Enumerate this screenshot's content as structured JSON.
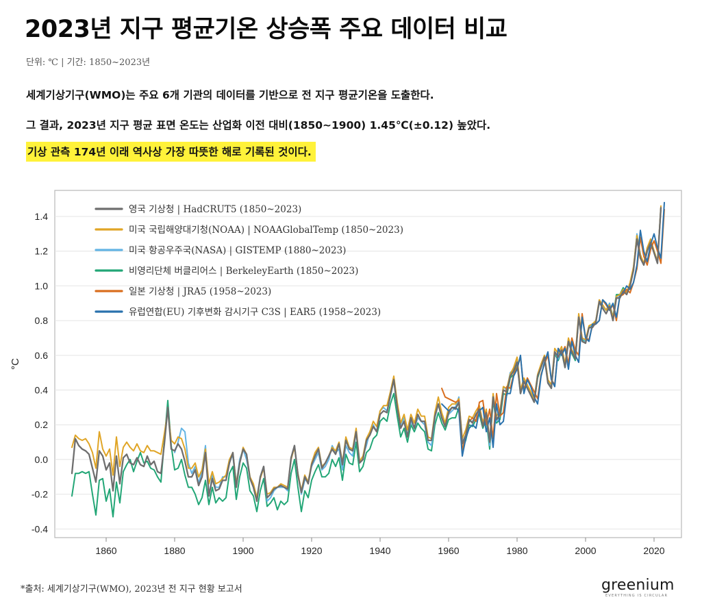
{
  "header": {
    "title": "2023년 지구 평균기온 상승폭 주요 데이터 비교",
    "unit_line": "단위: ℃ | 기간: 1850~2023년"
  },
  "description": {
    "line1": "세계기상기구(WMO)는 주요 6개 기관의 데이터를 기반으로 전 지구 평균기온을 도출한다.",
    "line2": "그 결과, 2023년 지구 평균 표면 온도는 산업화 이전 대비(1850~1900) 1.45℃(±0.12) 높았다.",
    "line3_highlight": "기상 관측 174년 이래 역사상 가장 따뜻한 해로 기록된 것이다."
  },
  "footer": {
    "source": "*출처: 세계기상기구(WMO), 2023년 전 지구 현황 보고서",
    "logo": "greenium",
    "logo_tagline": "EVERYTHING IS CIRCULAR"
  },
  "colors": {
    "highlight": "#fff23a",
    "HadCRUT5": "#6e6e6e",
    "NOAA": "#e0a526",
    "NASA": "#63b4e4",
    "Berkeley": "#22a676",
    "JRA5": "#d96e1e",
    "ERA5": "#2a72ad"
  },
  "chart_data": {
    "type": "line",
    "ylabel": "°C",
    "xlabel": "",
    "xlim": [
      1845,
      2028
    ],
    "ylim": [
      -0.45,
      1.55
    ],
    "xticks": [
      1860,
      1880,
      1900,
      1920,
      1940,
      1960,
      1980,
      2000,
      2020
    ],
    "yticks": [
      -0.4,
      -0.2,
      0.0,
      0.2,
      0.4,
      0.6,
      0.8,
      1.0,
      1.2,
      1.4
    ],
    "grid": "horizontal",
    "legend_position": "top-left",
    "series": [
      {
        "name": "영국 기상청 | HadCRUT5 (1850~2023)",
        "key": "HadCRUT5",
        "x_start": 1850,
        "values": [
          -0.08,
          0.12,
          0.08,
          0.06,
          0.05,
          0.03,
          -0.05,
          -0.13,
          0.05,
          0.02,
          -0.06,
          -0.02,
          -0.18,
          0.02,
          -0.14,
          0.01,
          0.03,
          -0.02,
          -0.03,
          0.01,
          -0.03,
          -0.04,
          0.02,
          -0.03,
          -0.01,
          -0.07,
          -0.08,
          0.09,
          0.3,
          0.06,
          0.05,
          0.09,
          0.06,
          -0.01,
          -0.1,
          -0.1,
          -0.06,
          -0.15,
          -0.1,
          0.04,
          -0.21,
          -0.11,
          -0.18,
          -0.17,
          -0.12,
          -0.12,
          -0.02,
          0.04,
          -0.16,
          -0.02,
          0.06,
          0.03,
          -0.11,
          -0.16,
          -0.24,
          -0.1,
          -0.04,
          -0.22,
          -0.2,
          -0.17,
          -0.16,
          -0.15,
          -0.16,
          -0.17,
          0.01,
          0.08,
          -0.09,
          -0.19,
          -0.1,
          -0.14,
          -0.03,
          0.02,
          0.06,
          -0.05,
          -0.02,
          0.02,
          0.06,
          0.03,
          0.09,
          -0.03,
          0.11,
          0.06,
          0.05,
          0.16,
          -0.02,
          0.0,
          0.11,
          0.14,
          0.19,
          0.16,
          0.26,
          0.28,
          0.27,
          0.37,
          0.46,
          0.3,
          0.18,
          0.22,
          0.13,
          0.24,
          0.18,
          0.26,
          0.22,
          0.22,
          0.11,
          0.11,
          0.25,
          0.32,
          0.24,
          0.19,
          0.27,
          0.3,
          0.29,
          0.33,
          0.09,
          0.14,
          0.23,
          0.21,
          0.26,
          0.29,
          0.19,
          0.27,
          0.1,
          0.36,
          0.23,
          0.26,
          0.4,
          0.39,
          0.48,
          0.51,
          0.56,
          0.38,
          0.45,
          0.41,
          0.37,
          0.33,
          0.48,
          0.53,
          0.59,
          0.44,
          0.41,
          0.62,
          0.59,
          0.63,
          0.53,
          0.68,
          0.62,
          0.58,
          0.82,
          0.68,
          0.67,
          0.76,
          0.76,
          0.79,
          0.91,
          0.87,
          0.84,
          0.88,
          0.8,
          0.93,
          0.93,
          0.97,
          0.95,
          1.0,
          1.09,
          1.27,
          1.16,
          1.12,
          1.2,
          1.25,
          1.19,
          1.13,
          1.45
        ]
      },
      {
        "name": "미국 국립해양대기청(NOAA) | NOAAGlobalTemp (1850~2023)",
        "key": "NOAA",
        "x_start": 1850,
        "values": [
          0.07,
          0.14,
          0.12,
          0.11,
          0.12,
          0.09,
          0.04,
          -0.05,
          0.16,
          0.06,
          0.02,
          0.06,
          -0.09,
          0.13,
          -0.04,
          0.07,
          0.1,
          0.07,
          0.05,
          0.09,
          0.05,
          0.04,
          0.08,
          0.05,
          0.05,
          0.04,
          0.03,
          0.15,
          0.28,
          0.11,
          0.09,
          0.13,
          0.12,
          0.06,
          -0.05,
          -0.05,
          -0.02,
          -0.1,
          -0.06,
          0.06,
          -0.14,
          -0.07,
          -0.14,
          -0.13,
          -0.11,
          -0.09,
          0.0,
          0.04,
          -0.14,
          -0.02,
          0.07,
          0.03,
          -0.1,
          -0.14,
          -0.22,
          -0.11,
          -0.05,
          -0.2,
          -0.19,
          -0.16,
          -0.16,
          -0.14,
          -0.15,
          -0.16,
          0.0,
          0.07,
          -0.08,
          -0.18,
          -0.09,
          -0.13,
          -0.02,
          0.04,
          0.07,
          -0.04,
          -0.02,
          0.02,
          0.07,
          0.05,
          0.1,
          -0.02,
          0.13,
          0.07,
          0.06,
          0.18,
          -0.01,
          0.02,
          0.12,
          0.16,
          0.22,
          0.19,
          0.28,
          0.31,
          0.31,
          0.39,
          0.48,
          0.33,
          0.21,
          0.26,
          0.17,
          0.26,
          0.21,
          0.29,
          0.25,
          0.25,
          0.13,
          0.12,
          0.27,
          0.36,
          0.27,
          0.21,
          0.3,
          0.32,
          0.32,
          0.35,
          0.12,
          0.17,
          0.25,
          0.24,
          0.28,
          0.31,
          0.21,
          0.29,
          0.11,
          0.38,
          0.25,
          0.28,
          0.42,
          0.41,
          0.49,
          0.53,
          0.59,
          0.4,
          0.47,
          0.43,
          0.39,
          0.35,
          0.49,
          0.55,
          0.6,
          0.46,
          0.43,
          0.64,
          0.61,
          0.65,
          0.55,
          0.7,
          0.63,
          0.6,
          0.84,
          0.7,
          0.69,
          0.77,
          0.78,
          0.8,
          0.92,
          0.89,
          0.86,
          0.89,
          0.82,
          0.94,
          0.95,
          0.98,
          0.96,
          1.02,
          1.11,
          1.29,
          1.18,
          1.13,
          1.22,
          1.27,
          1.2,
          1.14,
          1.46
        ]
      },
      {
        "name": "미국 항공우주국(NASA) | GISTEMP (1880~2023)",
        "key": "NASA",
        "x_start": 1880,
        "values": [
          0.04,
          0.1,
          0.18,
          0.16,
          -0.02,
          -0.08,
          -0.04,
          -0.14,
          -0.06,
          0.08,
          -0.21,
          -0.09,
          -0.16,
          -0.16,
          -0.1,
          -0.1,
          0.0,
          0.02,
          -0.14,
          0.0,
          0.06,
          0.0,
          -0.1,
          -0.16,
          -0.22,
          -0.1,
          -0.04,
          -0.24,
          -0.22,
          -0.18,
          -0.16,
          -0.16,
          -0.16,
          -0.18,
          0.0,
          0.08,
          -0.08,
          -0.2,
          -0.12,
          -0.12,
          -0.04,
          0.0,
          0.04,
          -0.06,
          -0.04,
          0.0,
          0.08,
          0.04,
          0.06,
          -0.06,
          0.08,
          0.04,
          0.02,
          0.16,
          -0.02,
          0.02,
          0.08,
          0.16,
          0.2,
          0.16,
          0.28,
          0.3,
          0.28,
          0.36,
          0.46,
          0.3,
          0.2,
          0.24,
          0.14,
          0.22,
          0.18,
          0.24,
          0.22,
          0.2,
          0.1,
          0.08,
          0.24,
          0.32,
          0.26,
          0.2,
          0.26,
          0.28,
          0.3,
          0.36,
          0.1,
          0.14,
          0.22,
          0.22,
          0.26,
          0.28,
          0.22,
          0.26,
          0.08,
          0.36,
          0.22,
          0.26,
          0.42,
          0.4,
          0.5,
          0.52,
          0.58,
          0.4,
          0.46,
          0.42,
          0.38,
          0.34,
          0.48,
          0.54,
          0.6,
          0.46,
          0.42,
          0.62,
          0.58,
          0.62,
          0.54,
          0.68,
          0.62,
          0.58,
          0.82,
          0.7,
          0.68,
          0.76,
          0.78,
          0.8,
          0.9,
          0.88,
          0.86,
          0.9,
          0.82,
          0.94,
          0.94,
          0.98,
          0.96,
          1.0,
          1.1,
          1.3,
          1.18,
          1.12,
          1.22,
          1.26,
          1.2,
          1.14,
          1.45
        ]
      },
      {
        "name": "비영리단체 버클리어스 | BerkeleyEarth (1850~2023)",
        "key": "Berkeley",
        "x_start": 1850,
        "values": [
          -0.21,
          -0.08,
          -0.08,
          -0.07,
          -0.08,
          -0.07,
          -0.2,
          -0.32,
          -0.12,
          -0.11,
          -0.24,
          -0.17,
          -0.33,
          -0.13,
          -0.25,
          -0.07,
          -0.03,
          0.0,
          -0.07,
          -0.01,
          0.04,
          -0.02,
          -0.01,
          -0.05,
          -0.06,
          -0.1,
          -0.13,
          0.11,
          0.34,
          0.08,
          -0.06,
          -0.05,
          0.0,
          -0.09,
          -0.16,
          -0.16,
          -0.2,
          -0.26,
          -0.22,
          -0.12,
          -0.26,
          -0.16,
          -0.25,
          -0.22,
          -0.24,
          -0.22,
          -0.08,
          -0.04,
          -0.23,
          -0.1,
          -0.02,
          -0.05,
          -0.18,
          -0.21,
          -0.3,
          -0.18,
          -0.11,
          -0.27,
          -0.25,
          -0.22,
          -0.29,
          -0.24,
          -0.26,
          -0.24,
          -0.08,
          0.0,
          -0.16,
          -0.3,
          -0.18,
          -0.22,
          -0.12,
          -0.07,
          -0.03,
          -0.1,
          -0.1,
          -0.08,
          0.0,
          -0.04,
          0.01,
          -0.12,
          0.03,
          -0.02,
          -0.03,
          0.1,
          -0.07,
          -0.04,
          0.04,
          0.06,
          0.12,
          0.14,
          0.22,
          0.24,
          0.22,
          0.32,
          0.38,
          0.25,
          0.13,
          0.18,
          0.1,
          0.2,
          0.16,
          0.21,
          0.18,
          0.16,
          0.06,
          0.05,
          0.2,
          0.27,
          0.21,
          0.17,
          0.23,
          0.24,
          0.24,
          0.3,
          0.06,
          0.11,
          0.2,
          0.19,
          0.23,
          0.26,
          0.18,
          0.23,
          0.06,
          0.34,
          0.21,
          0.23,
          0.38,
          0.37,
          0.47,
          0.49,
          0.56,
          0.38,
          0.45,
          0.41,
          0.37,
          0.33,
          0.47,
          0.53,
          0.59,
          0.45,
          0.41,
          0.61,
          0.57,
          0.62,
          0.53,
          0.68,
          0.61,
          0.57,
          0.82,
          0.69,
          0.68,
          0.76,
          0.77,
          0.8,
          0.9,
          0.89,
          0.86,
          0.9,
          0.82,
          0.95,
          0.95,
          0.99,
          0.96,
          1.01,
          1.1,
          1.29,
          1.17,
          1.12,
          1.21,
          1.26,
          1.2,
          1.14,
          1.45
        ]
      },
      {
        "name": "일본 기상청 | JRA5 (1958~2023)",
        "key": "JRA5",
        "x_start": 1958,
        "values": [
          0.41,
          0.36,
          0.35,
          0.34,
          0.33,
          0.34,
          0.05,
          0.14,
          0.22,
          0.24,
          0.22,
          0.33,
          0.34,
          0.2,
          0.29,
          0.12,
          0.38,
          0.25,
          0.27,
          0.42,
          0.41,
          0.49,
          0.53,
          0.59,
          0.4,
          0.47,
          0.43,
          0.39,
          0.35,
          0.49,
          0.55,
          0.6,
          0.46,
          0.43,
          0.64,
          0.61,
          0.65,
          0.55,
          0.7,
          0.63,
          0.6,
          0.84,
          0.7,
          0.69,
          0.77,
          0.78,
          0.8,
          0.92,
          0.89,
          0.86,
          0.89,
          0.8,
          0.94,
          0.95,
          0.98,
          0.96,
          1.02,
          1.1,
          1.28,
          1.17,
          1.12,
          1.21,
          1.26,
          1.2,
          1.13,
          1.44
        ]
      },
      {
        "name": "유럽연합(EU) 기후변화 감시기구 C3S | EAR5 (1958~2023)",
        "key": "ERA5",
        "x_start": 1958,
        "values": [
          0.32,
          0.3,
          0.28,
          0.3,
          0.3,
          0.28,
          0.02,
          0.12,
          0.18,
          0.2,
          0.18,
          0.28,
          0.3,
          0.16,
          0.24,
          0.07,
          0.32,
          0.2,
          0.22,
          0.38,
          0.38,
          0.48,
          0.52,
          0.6,
          0.38,
          0.46,
          0.42,
          0.36,
          0.32,
          0.48,
          0.56,
          0.62,
          0.46,
          0.42,
          0.64,
          0.6,
          0.64,
          0.52,
          0.68,
          0.6,
          0.56,
          0.82,
          0.7,
          0.68,
          0.78,
          0.78,
          0.8,
          0.92,
          0.9,
          0.86,
          0.9,
          0.82,
          0.94,
          0.96,
          1.0,
          0.98,
          1.02,
          1.12,
          1.32,
          1.2,
          1.14,
          1.24,
          1.3,
          1.22,
          1.16,
          1.48
        ]
      }
    ]
  }
}
